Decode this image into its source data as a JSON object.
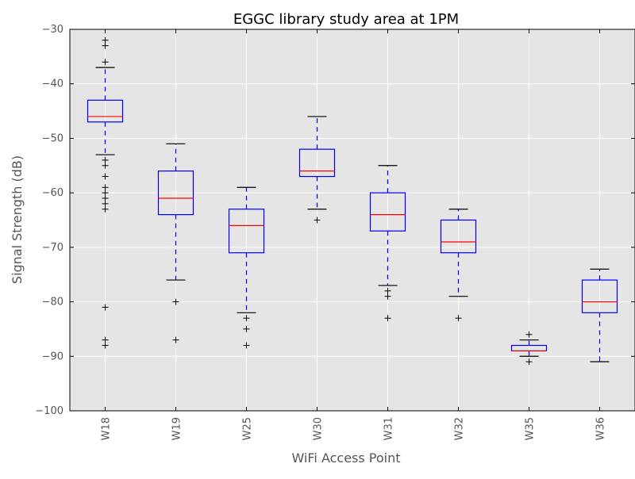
{
  "chart_data": {
    "type": "box",
    "title": "EGGC library study area at 1PM",
    "xlabel": "WiFi Access Point",
    "ylabel": "Signal Strength (dB)",
    "ylim": [
      -100,
      -30
    ],
    "yticks": [
      -100,
      -90,
      -80,
      -70,
      -60,
      -50,
      -40,
      -30
    ],
    "grid": true,
    "categories": [
      "W18",
      "W19",
      "W25",
      "W30",
      "W31",
      "W32",
      "W35",
      "W36"
    ],
    "boxes": [
      {
        "label": "W18",
        "whisker_low": -53,
        "q1": -47,
        "median": -46,
        "q3": -43,
        "whisker_high": -37,
        "outliers": [
          -32,
          -33,
          -36,
          -54,
          -55,
          -57,
          -59,
          -60,
          -61,
          -62,
          -63,
          -81,
          -87,
          -88
        ]
      },
      {
        "label": "W19",
        "whisker_low": -76,
        "q1": -64,
        "median": -61,
        "q3": -56,
        "whisker_high": -51,
        "outliers": [
          -80,
          -87
        ]
      },
      {
        "label": "W25",
        "whisker_low": -82,
        "q1": -71,
        "median": -66,
        "q3": -63,
        "whisker_high": -59,
        "outliers": [
          -83,
          -85,
          -88
        ]
      },
      {
        "label": "W30",
        "whisker_low": -63,
        "q1": -57,
        "median": -56,
        "q3": -52,
        "whisker_high": -46,
        "outliers": [
          -65
        ]
      },
      {
        "label": "W31",
        "whisker_low": -77,
        "q1": -67,
        "median": -64,
        "q3": -60,
        "whisker_high": -55,
        "outliers": [
          -78,
          -79,
          -83
        ]
      },
      {
        "label": "W32",
        "whisker_low": -79,
        "q1": -71,
        "median": -69,
        "q3": -65,
        "whisker_high": -63,
        "outliers": [
          -83
        ]
      },
      {
        "label": "W35",
        "whisker_low": -90,
        "q1": -89,
        "median": -89,
        "q3": -88,
        "whisker_high": -87,
        "outliers": [
          -86,
          -91
        ]
      },
      {
        "label": "W36",
        "whisker_low": -91,
        "q1": -82,
        "median": -80,
        "q3": -76,
        "whisker_high": -74,
        "outliers": []
      }
    ],
    "colors": {
      "plot_background": "#e5e5e5",
      "grid": "#ffffff",
      "box": "#0000ff",
      "median": "#ff0000",
      "whisker_cap": "#000000",
      "flier": "#000000",
      "text": "#555555",
      "title": "#000000"
    }
  }
}
